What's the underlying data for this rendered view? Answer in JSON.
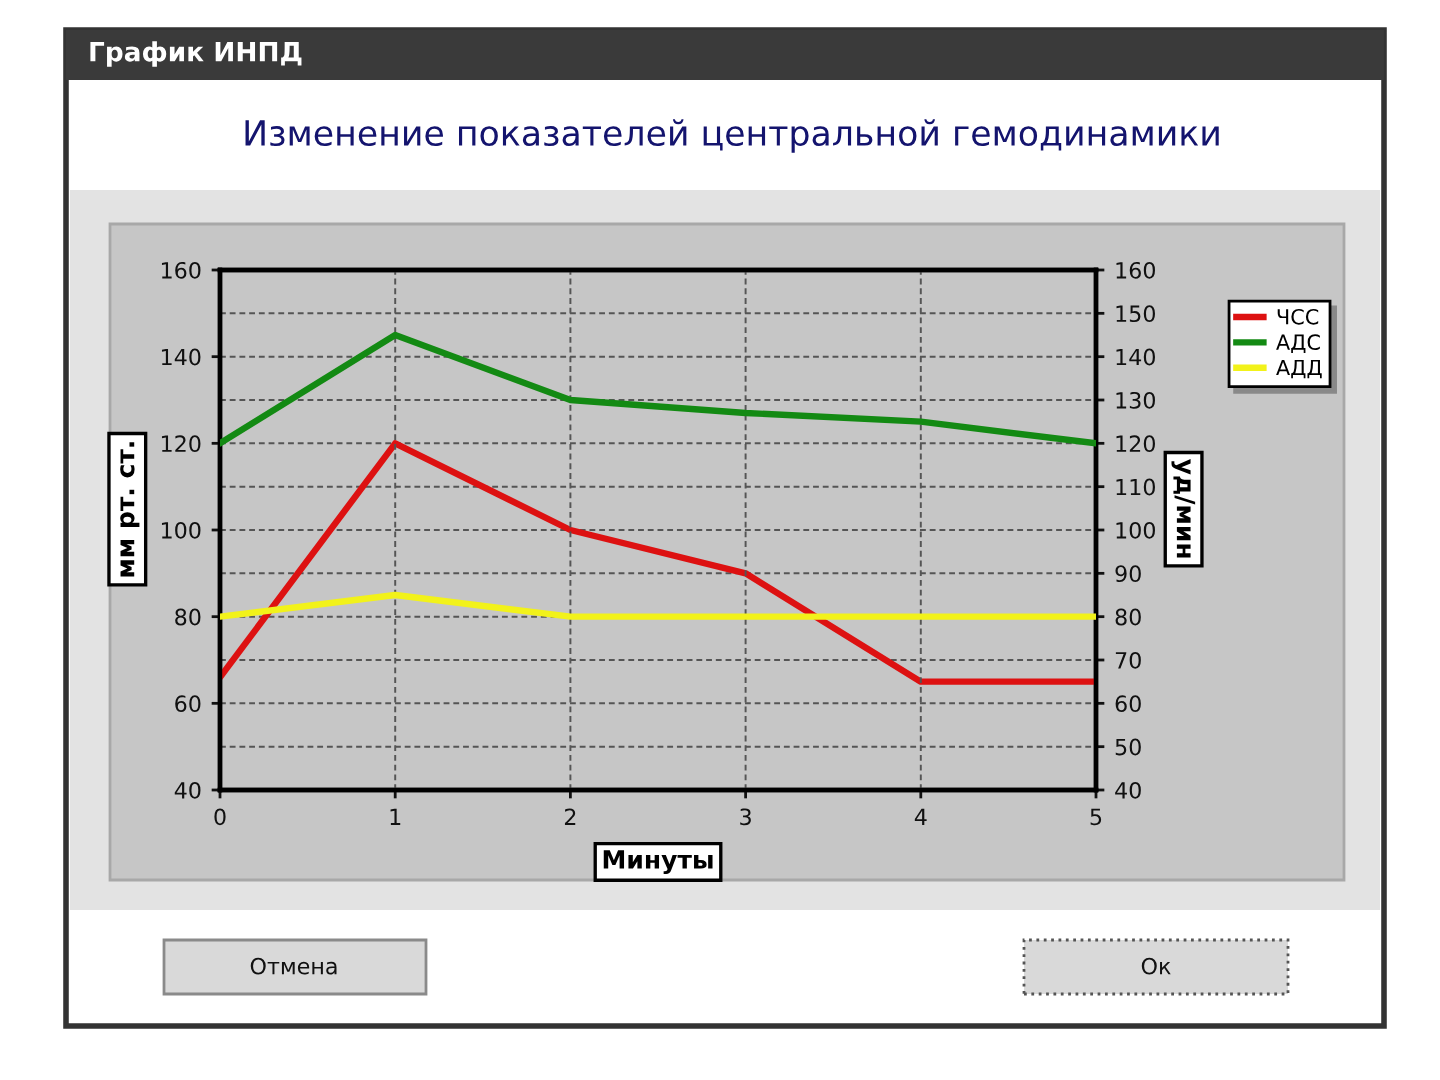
{
  "chart_data": {
    "type": "line",
    "title": "Изменение показателей центральной гемодинамики",
    "xlabel": "Минуты",
    "ylabel": "мм рт. ст.",
    "y2label": "уд/мин",
    "annotations": [
      "График ИНПД",
      "Отмена",
      "Ок"
    ],
    "x": [
      0,
      1,
      2,
      3,
      4,
      5
    ],
    "series": [
      {
        "name": "ЧСС",
        "color": "#dd1111",
        "axis": "y2",
        "values": [
          66,
          120,
          100,
          90,
          65,
          65
        ]
      },
      {
        "name": "АДС",
        "color": "#138a13",
        "values": [
          120,
          145,
          130,
          127,
          125,
          120
        ]
      },
      {
        "name": "АДД",
        "color": "#f2f21a",
        "values": [
          80,
          85,
          80,
          80,
          80,
          80
        ]
      }
    ],
    "xlim": [
      0,
      5
    ],
    "xticks": [
      0,
      1,
      2,
      3,
      4,
      5
    ],
    "ylim": [
      40,
      160
    ],
    "yticks": [
      40,
      60,
      80,
      100,
      120,
      140,
      160
    ],
    "y2lim": [
      40,
      160
    ],
    "y2ticks": [
      40,
      50,
      60,
      70,
      80,
      90,
      100,
      110,
      120,
      130,
      140,
      150,
      160
    ],
    "grid": true,
    "legend": "top right",
    "line_style": "solid"
  }
}
